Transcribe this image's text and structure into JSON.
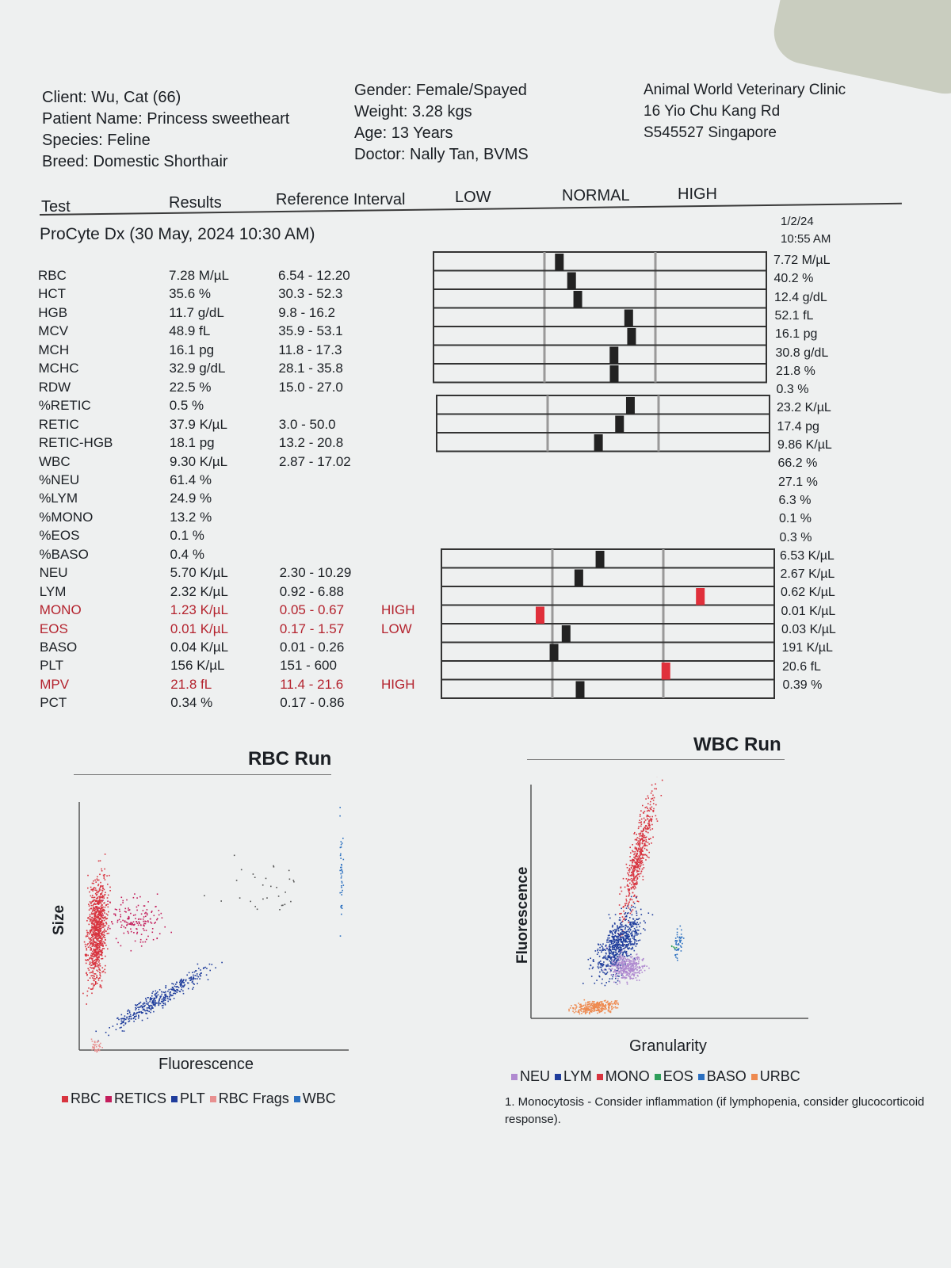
{
  "header": {
    "client": "Client: Wu, Cat (66)",
    "patient": "Patient Name: Princess sweetheart",
    "species": "Species: Feline",
    "breed": "Breed: Domestic Shorthair",
    "gender": "Gender: Female/Spayed",
    "weight": "Weight: 3.28 kgs",
    "age": "Age: 13 Years",
    "doctor": "Doctor: Nally Tan, BVMS",
    "clinic_name": "Animal World Veterinary Clinic",
    "clinic_address1": "16 Yio Chu Kang Rd",
    "clinic_address2": "S545527 Singapore"
  },
  "columns": {
    "test": "Test",
    "results": "Results",
    "reference": "Reference Interval",
    "low": "LOW",
    "normal": "NORMAL",
    "high": "HIGH"
  },
  "section_title": "ProCyte Dx (30 May, 2024 10:30 AM)",
  "previous_run": {
    "date": "1/2/24",
    "time": "10:55 AM"
  },
  "rows": [
    {
      "label": "RBC",
      "result": "7.28 M/µL",
      "ref": "6.54 - 12.20",
      "flag": "",
      "prev": "7.72 M/µL",
      "abnormal": false
    },
    {
      "label": "HCT",
      "result": "35.6 %",
      "ref": "30.3 - 52.3",
      "flag": "",
      "prev": "40.2 %",
      "abnormal": false
    },
    {
      "label": "HGB",
      "result": "11.7 g/dL",
      "ref": "9.8 - 16.2",
      "flag": "",
      "prev": "12.4 g/dL",
      "abnormal": false
    },
    {
      "label": "MCV",
      "result": "48.9 fL",
      "ref": "35.9 - 53.1",
      "flag": "",
      "prev": "52.1 fL",
      "abnormal": false
    },
    {
      "label": "MCH",
      "result": "16.1 pg",
      "ref": "11.8 - 17.3",
      "flag": "",
      "prev": "16.1 pg",
      "abnormal": false
    },
    {
      "label": "MCHC",
      "result": "32.9 g/dL",
      "ref": "28.1 - 35.8",
      "flag": "",
      "prev": "30.8 g/dL",
      "abnormal": false
    },
    {
      "label": "RDW",
      "result": "22.5 %",
      "ref": "15.0 - 27.0",
      "flag": "",
      "prev": "21.8 %",
      "abnormal": false
    },
    {
      "label": "%RETIC",
      "result": "0.5 %",
      "ref": "",
      "flag": "",
      "prev": "0.3 %",
      "abnormal": false
    },
    {
      "label": "RETIC",
      "result": "37.9 K/µL",
      "ref": "3.0 - 50.0",
      "flag": "",
      "prev": "23.2 K/µL",
      "abnormal": false
    },
    {
      "label": "RETIC-HGB",
      "result": "18.1 pg",
      "ref": "13.2 - 20.8",
      "flag": "",
      "prev": "17.4 pg",
      "abnormal": false
    },
    {
      "label": "WBC",
      "result": "9.30 K/µL",
      "ref": "2.87 - 17.02",
      "flag": "",
      "prev": "9.86 K/µL",
      "abnormal": false
    },
    {
      "label": "%NEU",
      "result": "61.4 %",
      "ref": "",
      "flag": "",
      "prev": "66.2 %",
      "abnormal": false
    },
    {
      "label": "%LYM",
      "result": "24.9 %",
      "ref": "",
      "flag": "",
      "prev": "27.1 %",
      "abnormal": false
    },
    {
      "label": "%MONO",
      "result": "13.2 %",
      "ref": "",
      "flag": "",
      "prev": "6.3 %",
      "abnormal": false
    },
    {
      "label": "%EOS",
      "result": "0.1 %",
      "ref": "",
      "flag": "",
      "prev": "0.1 %",
      "abnormal": false
    },
    {
      "label": "%BASO",
      "result": "0.4 %",
      "ref": "",
      "flag": "",
      "prev": "0.3 %",
      "abnormal": false
    },
    {
      "label": "NEU",
      "result": "5.70 K/µL",
      "ref": "2.30 - 10.29",
      "flag": "",
      "prev": "6.53 K/µL",
      "abnormal": false
    },
    {
      "label": "LYM",
      "result": "2.32 K/µL",
      "ref": "0.92 - 6.88",
      "flag": "",
      "prev": "2.67 K/µL",
      "abnormal": false
    },
    {
      "label": "MONO",
      "result": "1.23 K/µL",
      "ref": "0.05 - 0.67",
      "flag": "HIGH",
      "prev": "0.62 K/µL",
      "abnormal": true
    },
    {
      "label": "EOS",
      "result": "0.01 K/µL",
      "ref": "0.17 - 1.57",
      "flag": "LOW",
      "prev": "0.01 K/µL",
      "abnormal": true
    },
    {
      "label": "BASO",
      "result": "0.04 K/µL",
      "ref": "0.01 - 0.26",
      "flag": "",
      "prev": "0.03 K/µL",
      "abnormal": false
    },
    {
      "label": "PLT",
      "result": "156 K/µL",
      "ref": "151 - 600",
      "flag": "",
      "prev": "191 K/µL",
      "abnormal": false
    },
    {
      "label": "MPV",
      "result": "21.8 fL",
      "ref": "11.4 - 21.6",
      "flag": "HIGH",
      "prev": "20.6 fL",
      "abnormal": true
    },
    {
      "label": "PCT",
      "result": "0.34 %",
      "ref": "0.17 - 0.86",
      "flag": "",
      "prev": "0.39 %",
      "abnormal": false
    }
  ],
  "range_bars": [
    {
      "test": "RBC",
      "value": 7.28,
      "low": 6.54,
      "high": 12.2,
      "abnormal": false
    },
    {
      "test": "HCT",
      "value": 35.6,
      "low": 30.3,
      "high": 52.3,
      "abnormal": false
    },
    {
      "test": "HGB",
      "value": 11.7,
      "low": 9.8,
      "high": 16.2,
      "abnormal": false
    },
    {
      "test": "MCV",
      "value": 48.9,
      "low": 35.9,
      "high": 53.1,
      "abnormal": false
    },
    {
      "test": "MCH",
      "value": 16.1,
      "low": 11.8,
      "high": 17.3,
      "abnormal": false
    },
    {
      "test": "MCHC",
      "value": 32.9,
      "low": 28.1,
      "high": 35.8,
      "abnormal": false
    },
    {
      "test": "RDW",
      "value": 22.5,
      "low": 15.0,
      "high": 27.0,
      "abnormal": false
    },
    {
      "test": "RETIC",
      "value": 37.9,
      "low": 3.0,
      "high": 50.0,
      "abnormal": false
    },
    {
      "test": "RETIC-HGB",
      "value": 18.1,
      "low": 13.2,
      "high": 20.8,
      "abnormal": false
    },
    {
      "test": "WBC",
      "value": 9.3,
      "low": 2.87,
      "high": 17.02,
      "abnormal": false
    },
    {
      "test": "NEU",
      "value": 5.7,
      "low": 2.3,
      "high": 10.29,
      "abnormal": false
    },
    {
      "test": "LYM",
      "value": 2.32,
      "low": 0.92,
      "high": 6.88,
      "abnormal": false
    },
    {
      "test": "MONO",
      "value": 1.23,
      "low": 0.05,
      "high": 0.67,
      "abnormal": true
    },
    {
      "test": "EOS",
      "value": 0.01,
      "low": 0.17,
      "high": 1.57,
      "abnormal": true
    },
    {
      "test": "BASO",
      "value": 0.04,
      "low": 0.01,
      "high": 0.26,
      "abnormal": false
    },
    {
      "test": "PLT",
      "value": 156,
      "low": 151,
      "high": 600,
      "abnormal": false
    },
    {
      "test": "MPV",
      "value": 21.8,
      "low": 11.4,
      "high": 21.6,
      "abnormal": true
    },
    {
      "test": "PCT",
      "value": 0.34,
      "low": 0.17,
      "high": 0.86,
      "abnormal": false
    }
  ],
  "rbc_run": {
    "title": "RBC Run",
    "xlabel": "Fluorescence",
    "ylabel": "Size",
    "legend": [
      {
        "label": "RBC",
        "color": "#d8343f"
      },
      {
        "label": "RETICS",
        "color": "#c41e5c"
      },
      {
        "label": "PLT",
        "color": "#1f3d9c"
      },
      {
        "label": "RBC Frags",
        "color": "#e89090"
      },
      {
        "label": "WBC",
        "color": "#2a6fc0"
      }
    ]
  },
  "wbc_run": {
    "title": "WBC Run",
    "xlabel": "Granularity",
    "ylabel": "Fluorescence",
    "legend": [
      {
        "label": "NEU",
        "color": "#b08ad0"
      },
      {
        "label": "LYM",
        "color": "#1f3d9c"
      },
      {
        "label": "MONO",
        "color": "#d8343f"
      },
      {
        "label": "EOS",
        "color": "#2e9e5a"
      },
      {
        "label": "BASO",
        "color": "#2a6fc0"
      },
      {
        "label": "URBC",
        "color": "#ee8a50"
      }
    ]
  },
  "note": "1. Monocytosis - Consider inflammation (if lymphopenia, consider glucocorticoid response).",
  "colors": {
    "abnormal": "#b4232e",
    "normal_marker": "#222222",
    "abnormal_marker": "#e0303b"
  }
}
